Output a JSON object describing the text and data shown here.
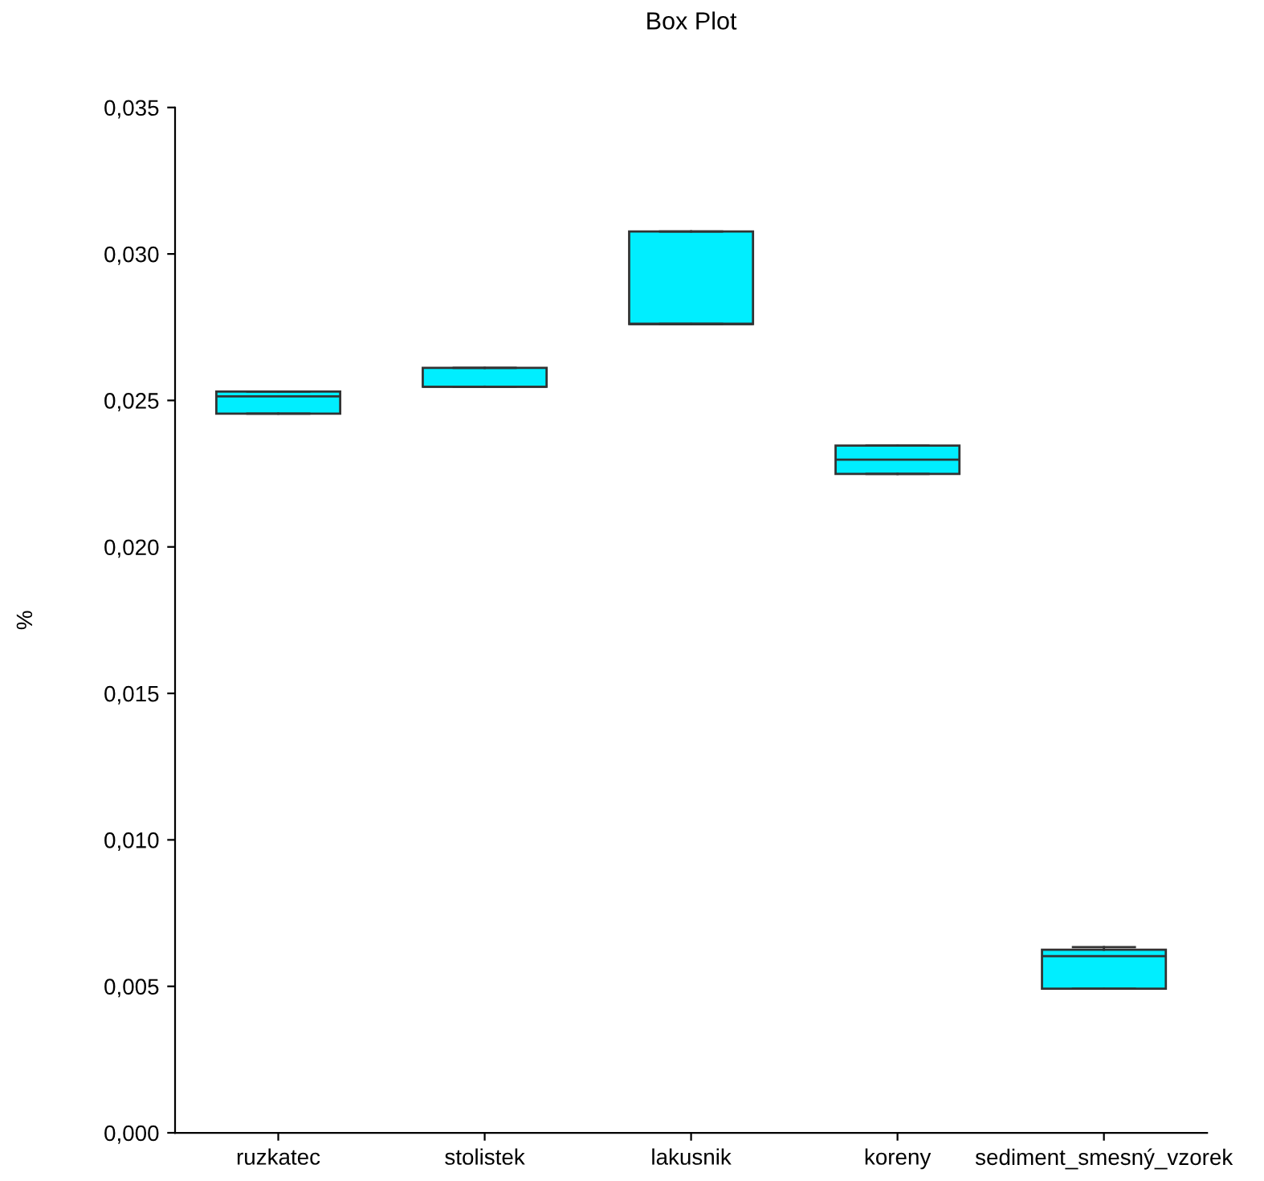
{
  "chart_data": {
    "type": "box",
    "title": "Box Plot",
    "ylabel": "%",
    "categories": [
      "ruzkatec",
      "stolistek",
      "lakusnik",
      "koreny",
      "sediment_smesný_vzorek"
    ],
    "boxes": [
      {
        "low": 0.02455,
        "q1": 0.02455,
        "median": 0.02514,
        "q3": 0.0253,
        "high": 0.0253
      },
      {
        "low": 0.02547,
        "q1": 0.02547,
        "median": 0.02547,
        "q3": 0.02611,
        "high": 0.02611
      },
      {
        "low": 0.02761,
        "q1": 0.02761,
        "median": 0.02761,
        "q3": 0.03077,
        "high": 0.03077
      },
      {
        "low": 0.02249,
        "q1": 0.02249,
        "median": 0.02298,
        "q3": 0.02346,
        "high": 0.02346
      },
      {
        "low": 0.00492,
        "q1": 0.00492,
        "median": 0.00603,
        "q3": 0.00625,
        "high": 0.00634
      }
    ],
    "color": "#00eeff",
    "ylim": [
      0,
      0.035
    ],
    "yticks": [
      {
        "value": 0,
        "label": "0,000"
      },
      {
        "value": 0.005,
        "label": "0,005"
      },
      {
        "value": 0.01,
        "label": "0,010"
      },
      {
        "value": 0.015,
        "label": "0,015"
      },
      {
        "value": 0.02,
        "label": "0,020"
      },
      {
        "value": 0.025,
        "label": "0,025"
      },
      {
        "value": 0.03,
        "label": "0,030"
      },
      {
        "value": 0.035,
        "label": "0,035"
      }
    ],
    "grid": false,
    "legend": false
  }
}
